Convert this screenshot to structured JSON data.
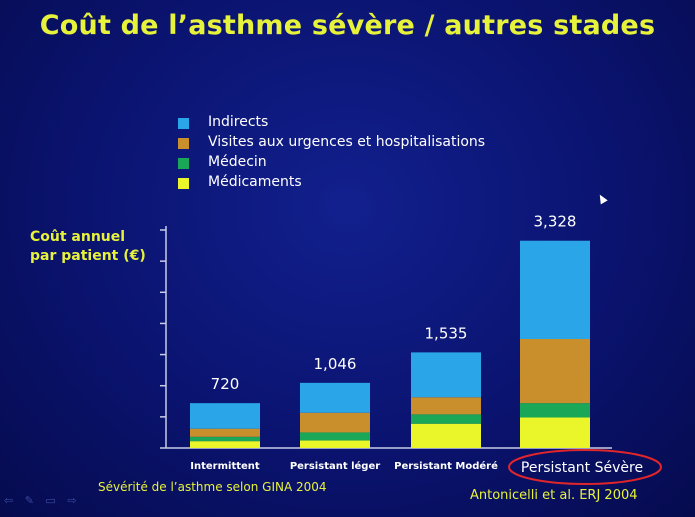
{
  "slide": {
    "title": "Coût de l’asthme sévère / autres stades",
    "source": "Antonicelli et al. ERJ 2004"
  },
  "chart_data": {
    "type": "bar",
    "stacked": true,
    "title": "",
    "xlabel": "Sévérité de l’asthme selon GINA 2004",
    "ylabel": "Coût annuel\npar patient (€)",
    "ylim": [
      0,
      3500
    ],
    "grid": false,
    "legend_position": "top",
    "categories": [
      "Intermittent",
      "Persistant léger",
      "Persistant Modéré",
      "Persistant Sévère"
    ],
    "totals_labels": [
      "720",
      "1,046",
      "1,535",
      "3,328"
    ],
    "totals": [
      720,
      1046,
      1535,
      3328
    ],
    "highlighted_category": "Persistant Sévère",
    "series": [
      {
        "name": "Médicaments",
        "color": "#eaf52a",
        "values": [
          110,
          120,
          390,
          490
        ]
      },
      {
        "name": "Médecin",
        "color": "#1aa858",
        "values": [
          70,
          130,
          150,
          230
        ]
      },
      {
        "name": "Visites aux urgences et hospitalisations",
        "color": "#c98f2c",
        "values": [
          130,
          316,
          275,
          1030
        ]
      },
      {
        "name": "Indirects",
        "color": "#2aa6e8",
        "values": [
          410,
          480,
          720,
          1578
        ]
      }
    ],
    "legend_order": [
      "Indirects",
      "Visites aux urgences et hospitalisations",
      "Médecin",
      "Médicaments"
    ]
  },
  "icons": {
    "cursor": "cursor-arrow-icon",
    "nav": "slide-nav-icons"
  }
}
